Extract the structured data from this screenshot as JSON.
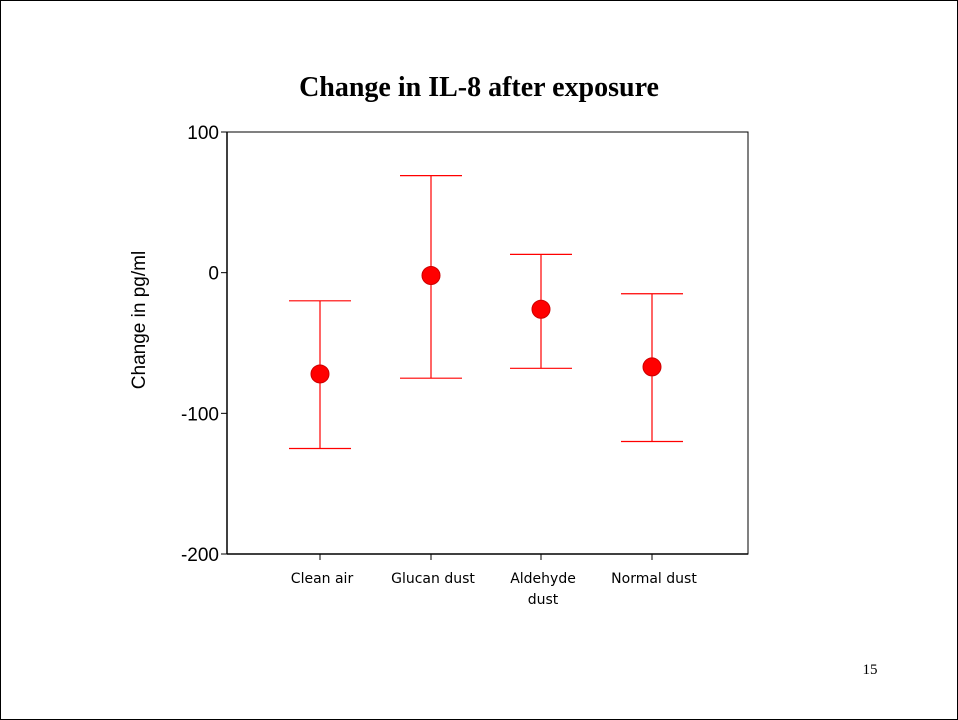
{
  "slide": {
    "page_number": "15"
  },
  "colors": {
    "series": "#ff0000",
    "axis": "#000000",
    "background": "#ffffff"
  },
  "chart_data": {
    "type": "scatter",
    "title": "Change in IL-8 after exposure",
    "xlabel": "",
    "ylabel": "Change in pg/ml",
    "categories": [
      "Clean air",
      "Glucan dust",
      "Aldehyde dust",
      "Normal dust"
    ],
    "category_label_lines": [
      [
        "Clean air"
      ],
      [
        "Glucan dust"
      ],
      [
        "Aldehyde",
        "dust"
      ],
      [
        "Normal dust"
      ]
    ],
    "series": [
      {
        "values": [
          -72,
          -2,
          -26,
          -67
        ],
        "error_low": [
          -125,
          -75,
          -68,
          -120
        ],
        "error_high": [
          -20,
          69,
          13,
          -15
        ]
      }
    ],
    "yticks": [
      -200,
      -100,
      0,
      100
    ],
    "ytick_labels": [
      "-200",
      "-100",
      "0",
      "100"
    ],
    "ylim": [
      -200,
      100
    ],
    "grid": false,
    "legend": "none"
  }
}
